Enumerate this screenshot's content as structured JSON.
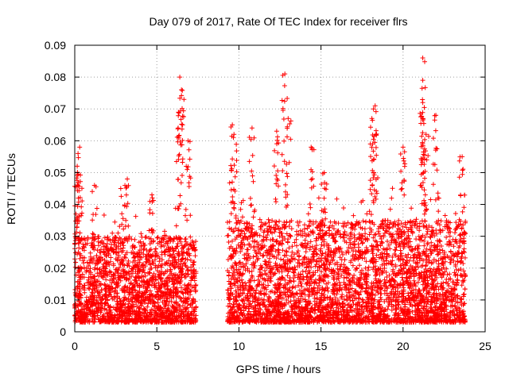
{
  "chart_data": {
    "type": "scatter",
    "title": "Day 079 of 2017, Rate Of TEC Index for receiver flrs",
    "xlabel": "GPS time / hours",
    "ylabel": "ROTI / TECUs",
    "xlim": [
      0,
      25
    ],
    "ylim": [
      0,
      0.09
    ],
    "x_ticks": [
      0,
      5,
      10,
      15,
      20,
      25
    ],
    "x_tick_labels": [
      "0",
      "5",
      "10",
      "15",
      "20",
      "25"
    ],
    "y_ticks": [
      0,
      0.01,
      0.02,
      0.03,
      0.04,
      0.05,
      0.06,
      0.07,
      0.08,
      0.09
    ],
    "y_tick_labels": [
      "0",
      "0.01",
      "0.02",
      "0.03",
      "0.04",
      "0.05",
      "0.06",
      "0.07",
      "0.08",
      "0.09"
    ],
    "grid": true,
    "marker": "plus",
    "color": "#ff0000",
    "series": [
      {
        "name": "ROTI",
        "segments": [
          {
            "x_start": 0.0,
            "x_end": 7.4,
            "typical_min": 0.003,
            "typical_max": 0.03
          },
          {
            "x_start": 9.3,
            "x_end": 23.8,
            "typical_min": 0.003,
            "typical_max": 0.035
          }
        ],
        "peaks": [
          {
            "x": 0.2,
            "y": 0.056
          },
          {
            "x": 0.3,
            "y": 0.058
          },
          {
            "x": 0.15,
            "y": 0.052
          },
          {
            "x": 1.2,
            "y": 0.046
          },
          {
            "x": 2.8,
            "y": 0.045
          },
          {
            "x": 3.2,
            "y": 0.048
          },
          {
            "x": 4.7,
            "y": 0.043
          },
          {
            "x": 6.3,
            "y": 0.064
          },
          {
            "x": 6.4,
            "y": 0.08
          },
          {
            "x": 6.5,
            "y": 0.076
          },
          {
            "x": 6.9,
            "y": 0.06
          },
          {
            "x": 9.6,
            "y": 0.065
          },
          {
            "x": 9.7,
            "y": 0.062
          },
          {
            "x": 10.8,
            "y": 0.064
          },
          {
            "x": 12.3,
            "y": 0.063
          },
          {
            "x": 12.8,
            "y": 0.081
          },
          {
            "x": 13.0,
            "y": 0.067
          },
          {
            "x": 14.4,
            "y": 0.058
          },
          {
            "x": 15.2,
            "y": 0.05
          },
          {
            "x": 18.2,
            "y": 0.07
          },
          {
            "x": 18.3,
            "y": 0.071
          },
          {
            "x": 18.1,
            "y": 0.067
          },
          {
            "x": 20.0,
            "y": 0.058
          },
          {
            "x": 21.2,
            "y": 0.086
          },
          {
            "x": 21.2,
            "y": 0.079
          },
          {
            "x": 21.2,
            "y": 0.072
          },
          {
            "x": 21.4,
            "y": 0.062
          },
          {
            "x": 22.0,
            "y": 0.068
          },
          {
            "x": 23.6,
            "y": 0.055
          }
        ]
      }
    ]
  }
}
